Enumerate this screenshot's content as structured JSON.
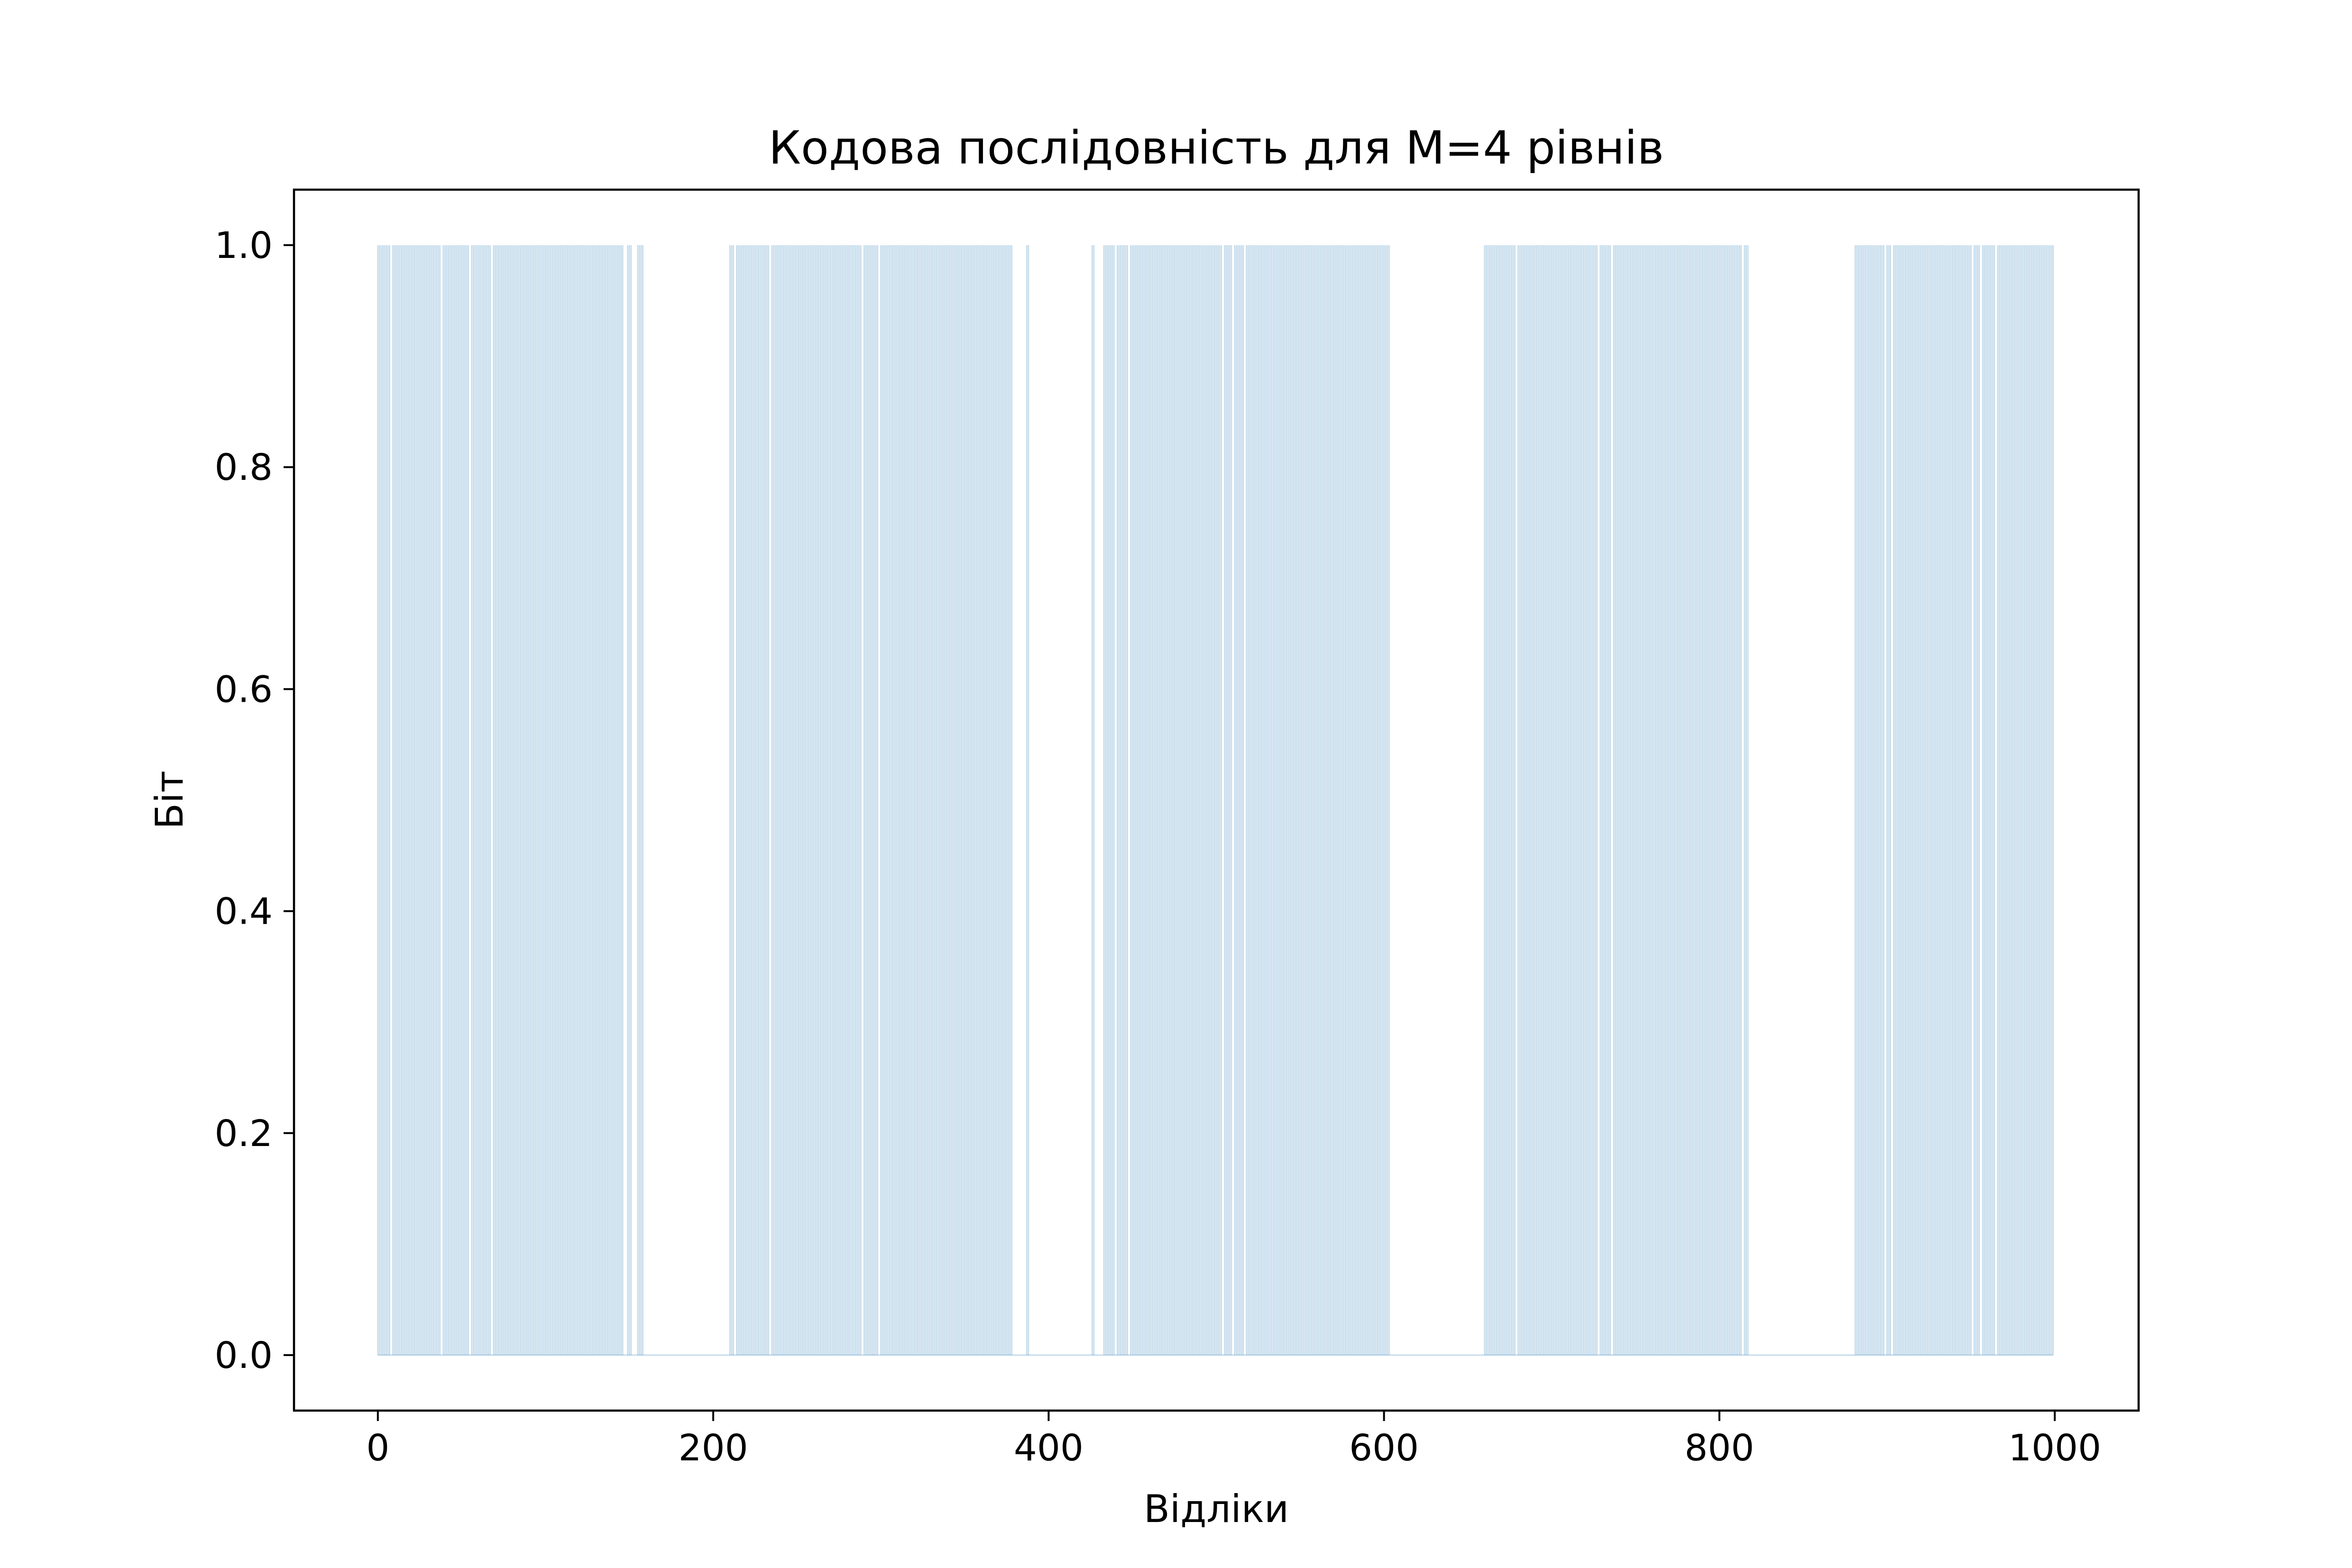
{
  "chart_data": {
    "type": "bar",
    "title": "Кодова послідовність для M=4 рівнів",
    "xlabel": "Відліки",
    "ylabel": "Біт",
    "xlim": [
      -50,
      1050
    ],
    "ylim": [
      -0.05,
      1.05
    ],
    "x_ticks": [
      "0",
      "200",
      "400",
      "600",
      "800",
      "1000"
    ],
    "x_tick_values": [
      0,
      200,
      400,
      600,
      800,
      1000
    ],
    "y_ticks": [
      "0.0",
      "0.2",
      "0.4",
      "0.6",
      "0.8",
      "1.0"
    ],
    "y_tick_values": [
      0,
      0.2,
      0.4,
      0.6,
      0.8,
      1.0
    ],
    "bar_color": "#1f77b4",
    "bar_alpha": 0.25,
    "grid": false,
    "legend": "none",
    "value_of_ones": 1,
    "one_ranges": [
      [
        0,
        7
      ],
      [
        9,
        37
      ],
      [
        39,
        54
      ],
      [
        56,
        67
      ],
      [
        69,
        146
      ],
      [
        149,
        151
      ],
      [
        155,
        158
      ],
      [
        210,
        212
      ],
      [
        214,
        233
      ],
      [
        235,
        288
      ],
      [
        290,
        298
      ],
      [
        300,
        378
      ],
      [
        387,
        388
      ],
      [
        426,
        427
      ],
      [
        433,
        439
      ],
      [
        441,
        447
      ],
      [
        449,
        503
      ],
      [
        505,
        509
      ],
      [
        511,
        516
      ],
      [
        518,
        603
      ],
      [
        660,
        678
      ],
      [
        680,
        727
      ],
      [
        729,
        735
      ],
      [
        737,
        813
      ],
      [
        815,
        817
      ],
      [
        881,
        898
      ],
      [
        900,
        902
      ],
      [
        904,
        950
      ],
      [
        952,
        955
      ],
      [
        957,
        964
      ],
      [
        966,
        999
      ]
    ]
  }
}
